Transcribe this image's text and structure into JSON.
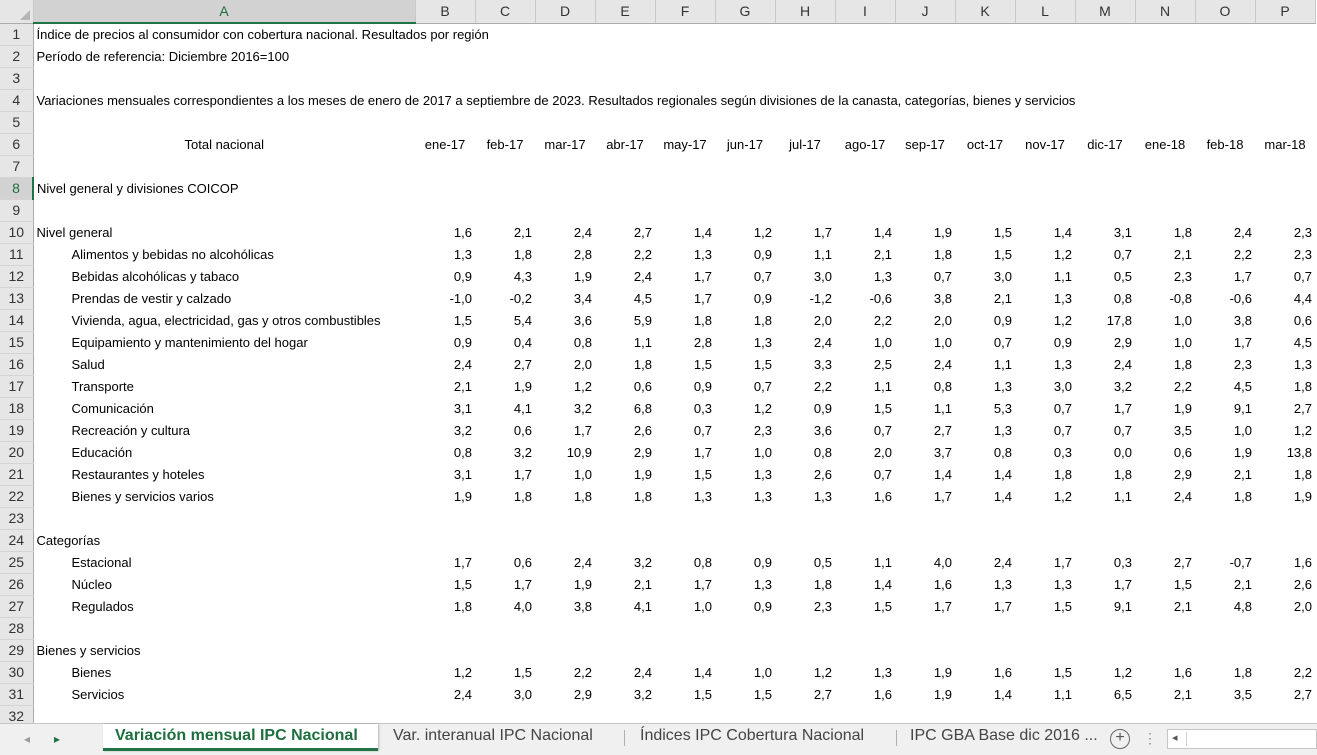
{
  "columns": [
    "A",
    "B",
    "C",
    "D",
    "E",
    "F",
    "G",
    "H",
    "I",
    "J",
    "K",
    "L",
    "M",
    "N",
    "O",
    "P"
  ],
  "selected_column": "A",
  "selected_row": 8,
  "text_rows": {
    "r1": "Índice de precios al consumidor con cobertura nacional. Resultados por región",
    "r2": "Período de referencia: Diciembre 2016=100",
    "r4": "Variaciones mensuales correspondientes a los meses de enero de 2017 a septiembre de 2023. Resultados regionales según divisiones de la canasta, categorías, bienes y servicios"
  },
  "header_row": {
    "label": "Total nacional",
    "months": [
      "ene-17",
      "feb-17",
      "mar-17",
      "abr-17",
      "may-17",
      "jun-17",
      "jul-17",
      "ago-17",
      "sep-17",
      "oct-17",
      "nov-17",
      "dic-17",
      "ene-18",
      "feb-18",
      "mar-18"
    ]
  },
  "sections": {
    "r8": "Nivel general y divisiones COICOP",
    "r24": "Categorías",
    "r29": "Bienes y servicios"
  },
  "data_rows": {
    "r10": {
      "label": "Nivel general",
      "values": [
        "1,6",
        "2,1",
        "2,4",
        "2,7",
        "1,4",
        "1,2",
        "1,7",
        "1,4",
        "1,9",
        "1,5",
        "1,4",
        "3,1",
        "1,8",
        "2,4",
        "2,3"
      ]
    },
    "r11": {
      "label": "Alimentos y bebidas no alcohólicas",
      "values": [
        "1,3",
        "1,8",
        "2,8",
        "2,2",
        "1,3",
        "0,9",
        "1,1",
        "2,1",
        "1,8",
        "1,5",
        "1,2",
        "0,7",
        "2,1",
        "2,2",
        "2,3"
      ]
    },
    "r12": {
      "label": "Bebidas alcohólicas y tabaco",
      "values": [
        "0,9",
        "4,3",
        "1,9",
        "2,4",
        "1,7",
        "0,7",
        "3,0",
        "1,3",
        "0,7",
        "3,0",
        "1,1",
        "0,5",
        "2,3",
        "1,7",
        "0,7"
      ]
    },
    "r13": {
      "label": "Prendas de vestir y calzado",
      "values": [
        "-1,0",
        "-0,2",
        "3,4",
        "4,5",
        "1,7",
        "0,9",
        "-1,2",
        "-0,6",
        "3,8",
        "2,1",
        "1,3",
        "0,8",
        "-0,8",
        "-0,6",
        "4,4"
      ]
    },
    "r14": {
      "label": "Vivienda, agua, electricidad, gas y otros combustibles",
      "values": [
        "1,5",
        "5,4",
        "3,6",
        "5,9",
        "1,8",
        "1,8",
        "2,0",
        "2,2",
        "2,0",
        "0,9",
        "1,2",
        "17,8",
        "1,0",
        "3,8",
        "0,6"
      ]
    },
    "r15": {
      "label": "Equipamiento y mantenimiento del hogar",
      "values": [
        "0,9",
        "0,4",
        "0,8",
        "1,1",
        "2,8",
        "1,3",
        "2,4",
        "1,0",
        "1,0",
        "0,7",
        "0,9",
        "2,9",
        "1,0",
        "1,7",
        "4,5"
      ]
    },
    "r16": {
      "label": "Salud",
      "values": [
        "2,4",
        "2,7",
        "2,0",
        "1,8",
        "1,5",
        "1,5",
        "3,3",
        "2,5",
        "2,4",
        "1,1",
        "1,3",
        "2,4",
        "1,8",
        "2,3",
        "1,3"
      ]
    },
    "r17": {
      "label": "Transporte",
      "values": [
        "2,1",
        "1,9",
        "1,2",
        "0,6",
        "0,9",
        "0,7",
        "2,2",
        "1,1",
        "0,8",
        "1,3",
        "3,0",
        "3,2",
        "2,2",
        "4,5",
        "1,8"
      ]
    },
    "r18": {
      "label": "Comunicación",
      "values": [
        "3,1",
        "4,1",
        "3,2",
        "6,8",
        "0,3",
        "1,2",
        "0,9",
        "1,5",
        "1,1",
        "5,3",
        "0,7",
        "1,7",
        "1,9",
        "9,1",
        "2,7"
      ]
    },
    "r19": {
      "label": "Recreación y cultura",
      "values": [
        "3,2",
        "0,6",
        "1,7",
        "2,6",
        "0,7",
        "2,3",
        "3,6",
        "0,7",
        "2,7",
        "1,3",
        "0,7",
        "0,7",
        "3,5",
        "1,0",
        "1,2"
      ]
    },
    "r20": {
      "label": "Educación",
      "values": [
        "0,8",
        "3,2",
        "10,9",
        "2,9",
        "1,7",
        "1,0",
        "0,8",
        "2,0",
        "3,7",
        "0,8",
        "0,3",
        "0,0",
        "0,6",
        "1,9",
        "13,8"
      ]
    },
    "r21": {
      "label": "Restaurantes y hoteles",
      "values": [
        "3,1",
        "1,7",
        "1,0",
        "1,9",
        "1,5",
        "1,3",
        "2,6",
        "0,7",
        "1,4",
        "1,4",
        "1,8",
        "1,8",
        "2,9",
        "2,1",
        "1,8"
      ]
    },
    "r22": {
      "label": "Bienes y servicios varios",
      "values": [
        "1,9",
        "1,8",
        "1,8",
        "1,8",
        "1,3",
        "1,3",
        "1,3",
        "1,6",
        "1,7",
        "1,4",
        "1,2",
        "1,1",
        "2,4",
        "1,8",
        "1,9"
      ]
    },
    "r25": {
      "label": "Estacional",
      "values": [
        "1,7",
        "0,6",
        "2,4",
        "3,2",
        "0,8",
        "0,9",
        "0,5",
        "1,1",
        "4,0",
        "2,4",
        "1,7",
        "0,3",
        "2,7",
        "-0,7",
        "1,6"
      ]
    },
    "r26": {
      "label": "Núcleo",
      "values": [
        "1,5",
        "1,7",
        "1,9",
        "2,1",
        "1,7",
        "1,3",
        "1,8",
        "1,4",
        "1,6",
        "1,3",
        "1,3",
        "1,7",
        "1,5",
        "2,1",
        "2,6"
      ]
    },
    "r27": {
      "label": "Regulados",
      "values": [
        "1,8",
        "4,0",
        "3,8",
        "4,1",
        "1,0",
        "0,9",
        "2,3",
        "1,5",
        "1,7",
        "1,7",
        "1,5",
        "9,1",
        "2,1",
        "4,8",
        "2,0"
      ]
    },
    "r30": {
      "label": "Bienes",
      "values": [
        "1,2",
        "1,5",
        "2,2",
        "2,4",
        "1,4",
        "1,0",
        "1,2",
        "1,3",
        "1,9",
        "1,6",
        "1,5",
        "1,2",
        "1,6",
        "1,8",
        "2,2"
      ]
    },
    "r31": {
      "label": "Servicios",
      "values": [
        "2,4",
        "3,0",
        "2,9",
        "3,2",
        "1,5",
        "1,5",
        "2,7",
        "1,6",
        "1,9",
        "1,4",
        "1,1",
        "6,5",
        "2,1",
        "3,5",
        "2,7"
      ]
    }
  },
  "tabs": [
    {
      "label": "Variación mensual IPC Nacional",
      "active": true
    },
    {
      "label": "Var. interanual IPC Nacional",
      "active": false
    },
    {
      "label": "Índices IPC Cobertura Nacional",
      "active": false
    },
    {
      "label": "IPC GBA Base dic 2016 ...",
      "active": false
    }
  ],
  "tabbar": {
    "nav_prev": "◂",
    "nav_next": "▸",
    "add_sheet": "+",
    "more": "⋮",
    "scroll_left": "◂"
  },
  "accent_color": "#217346"
}
